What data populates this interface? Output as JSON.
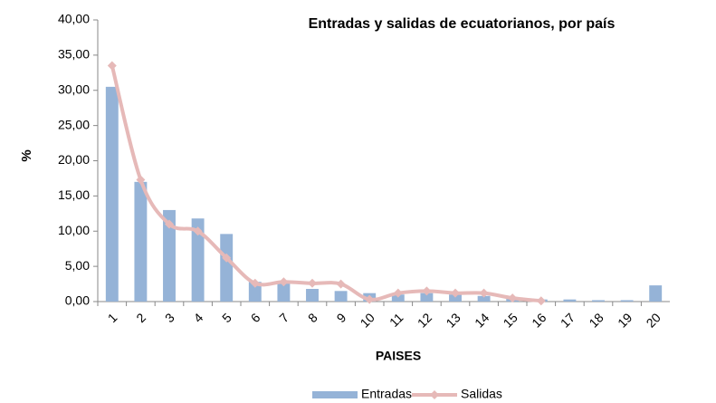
{
  "chart_data": {
    "type": "bar_line",
    "title": "Entradas y salidas de ecuatorianos, por país",
    "x_label": "PAISES",
    "y_label": "%",
    "categories": [
      "1",
      "2",
      "3",
      "4",
      "5",
      "6",
      "7",
      "8",
      "9",
      "10",
      "11",
      "12",
      "13",
      "14",
      "15",
      "16",
      "17",
      "18",
      "19",
      "20"
    ],
    "series": [
      {
        "name": "Entradas",
        "type": "bar",
        "color": "#95b3d7",
        "values": [
          30.5,
          17.0,
          13.0,
          11.8,
          9.6,
          2.8,
          2.6,
          1.8,
          1.5,
          1.2,
          1.0,
          1.2,
          1.0,
          0.8,
          0.4,
          0.3,
          0.3,
          0.2,
          0.2,
          2.3
        ]
      },
      {
        "name": "Salidas",
        "type": "line",
        "color": "#e6b9b8",
        "values": [
          33.5,
          17.3,
          11.0,
          10.0,
          6.2,
          2.6,
          2.8,
          2.6,
          2.5,
          0.3,
          1.2,
          1.5,
          1.2,
          1.2,
          0.5,
          0.1,
          null,
          null,
          null,
          null
        ]
      }
    ],
    "ylim": [
      0,
      40
    ],
    "yticks": [
      {
        "value": 0,
        "label": "0,00"
      },
      {
        "value": 5,
        "label": "5,00"
      },
      {
        "value": 10,
        "label": "10,00"
      },
      {
        "value": 15,
        "label": "15,00"
      },
      {
        "value": 20,
        "label": "20,00"
      },
      {
        "value": 25,
        "label": "25,00"
      },
      {
        "value": 30,
        "label": "30,00"
      },
      {
        "value": 35,
        "label": "35,00"
      },
      {
        "value": 40,
        "label": "40,00"
      }
    ],
    "grid": false,
    "legend": "bottom"
  }
}
